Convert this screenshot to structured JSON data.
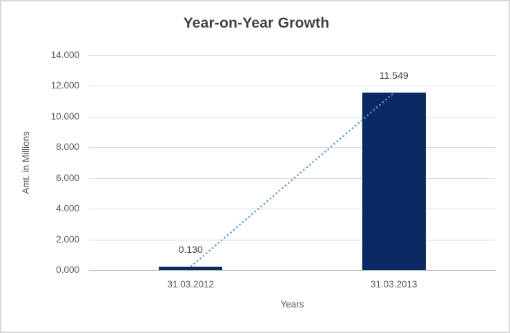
{
  "chart_data": {
    "type": "bar",
    "title": "Year-on-Year Growth",
    "xlabel": "Years",
    "ylabel": "Amt. in Millions",
    "categories": [
      "31.03.2012",
      "31.03.2013"
    ],
    "series": [
      {
        "name": "Amt. in Millions",
        "values": [
          0.13,
          11.549
        ]
      }
    ],
    "data_labels": [
      "0.130",
      "11.549"
    ],
    "y_tick_labels": [
      "0.000",
      "2.000",
      "4.000",
      "6.000",
      "8.000",
      "10.000",
      "12.000",
      "14.000"
    ],
    "ylim": [
      0,
      14
    ],
    "y_tick_step": 2,
    "grid": true,
    "legend": "none",
    "trendline": {
      "style": "dotted",
      "color": "#5b9bd5",
      "connects_values": [
        0.13,
        11.549
      ]
    },
    "colors": {
      "bar": "#0b2a63",
      "gridline": "#d9d9d9",
      "axis_line": "#bfbfbf",
      "title_text": "#404040",
      "axis_text": "#595959",
      "data_label_text": "#404040",
      "frame_border": "#d8d8d8",
      "background": "#ffffff"
    }
  }
}
